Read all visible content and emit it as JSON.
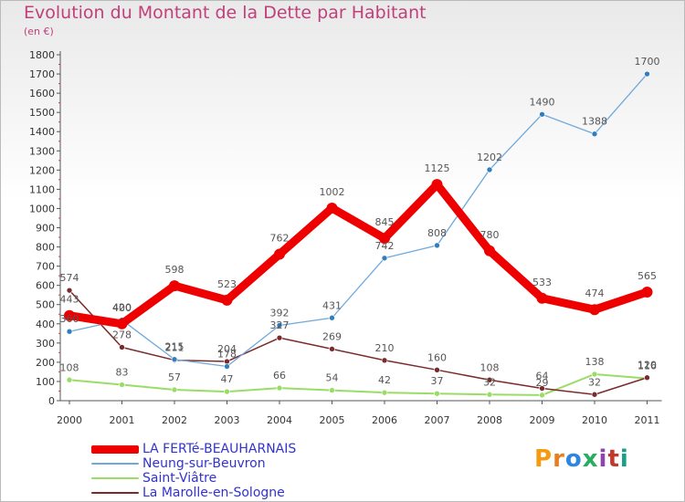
{
  "header": {
    "title": "Evolution du Montant de la Dette par Habitant",
    "unit": "(en €)"
  },
  "logo": {
    "text": "Proxiti",
    "colors": [
      "#f39c12",
      "#e67e22",
      "#2e86de",
      "#27ae60",
      "#8e44ad",
      "#c0392b",
      "#16a085"
    ]
  },
  "chart_data": {
    "type": "line",
    "x": [
      "2000",
      "2001",
      "2002",
      "2003",
      "2004",
      "2005",
      "2006",
      "2007",
      "2008",
      "2009",
      "2010",
      "2011"
    ],
    "ylim": [
      0,
      1800
    ],
    "yticks": [
      0,
      100,
      200,
      300,
      400,
      500,
      600,
      700,
      800,
      900,
      1000,
      1100,
      1200,
      1300,
      1400,
      1500,
      1600,
      1700,
      1800
    ],
    "grid": false,
    "legend_position": "bottom-left",
    "series": [
      {
        "name": "LA FERTé-BEAUHARNAIS",
        "color": "#ee0000",
        "values": [
          443,
          400,
          598,
          523,
          762,
          1002,
          845,
          1125,
          780,
          533,
          474,
          565
        ]
      },
      {
        "name": "Neung-sur-Beuvron",
        "color": "#6fa8dc",
        "marker_color": "#2f7fc0",
        "values": [
          360,
          420,
          215,
          178,
          392,
          431,
          742,
          808,
          1202,
          1490,
          1388,
          1700
        ]
      },
      {
        "name": "Saint-Viâtre",
        "color": "#99dd66",
        "values": [
          108,
          83,
          57,
          47,
          66,
          54,
          42,
          37,
          32,
          29,
          138,
          116
        ]
      },
      {
        "name": "La Marolle-en-Sologne",
        "color": "#7a2a2a",
        "values": [
          574,
          278,
          211,
          204,
          327,
          269,
          210,
          160,
          108,
          64,
          32,
          120
        ]
      }
    ],
    "data_labels": [
      [
        "443",
        "400",
        "598",
        "523",
        "762",
        "1002",
        "845",
        "1125",
        "780",
        "533",
        "474",
        "565"
      ],
      [
        "360",
        "420",
        "215",
        "178",
        "392",
        "431",
        "742",
        "808",
        "1202",
        "1490",
        "1388",
        "1700"
      ],
      [
        "108",
        "83",
        "57",
        "47",
        "66",
        "54",
        "42",
        "37",
        "32",
        "29",
        "138",
        "116"
      ],
      [
        "574",
        "278",
        "211",
        "204",
        "327",
        "269",
        "210",
        "160",
        "108",
        "64",
        "32",
        "120"
      ]
    ]
  }
}
